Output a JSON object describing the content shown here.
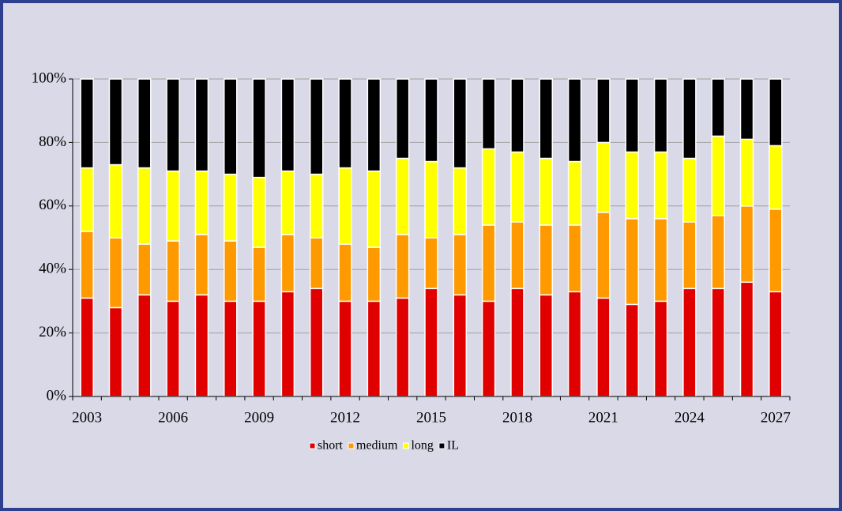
{
  "chart_data": {
    "type": "stacked_bar_100",
    "categories": [
      "2003",
      null,
      null,
      "2006",
      null,
      null,
      "2009",
      null,
      null,
      "2012",
      null,
      null,
      "2015",
      null,
      null,
      "2018",
      null,
      null,
      "2021",
      null,
      null,
      "2024",
      null,
      null,
      "2027"
    ],
    "series": [
      {
        "name": "short",
        "color": "#e00000",
        "values": [
          31,
          28,
          32,
          30,
          32,
          30,
          30,
          33,
          34,
          30,
          30,
          31,
          34,
          32,
          30,
          34,
          32,
          33,
          31,
          29,
          30,
          34,
          34,
          36,
          33
        ]
      },
      {
        "name": "medium",
        "color": "#ff9900",
        "values": [
          21,
          22,
          16,
          19,
          19,
          19,
          17,
          18,
          16,
          18,
          17,
          20,
          16,
          19,
          24,
          21,
          22,
          21,
          27,
          27,
          26,
          21,
          23,
          24,
          26
        ]
      },
      {
        "name": "long",
        "color": "#ffff00",
        "values": [
          20,
          23,
          24,
          22,
          20,
          21,
          22,
          20,
          20,
          24,
          24,
          24,
          24,
          21,
          24,
          22,
          21,
          20,
          22,
          21,
          21,
          20,
          25,
          21,
          20
        ]
      },
      {
        "name": "IL",
        "color": "#000000",
        "values": [
          28,
          27,
          28,
          29,
          29,
          30,
          31,
          29,
          30,
          28,
          29,
          25,
          26,
          28,
          22,
          23,
          25,
          26,
          20,
          23,
          23,
          25,
          18,
          19,
          21
        ]
      }
    ],
    "ylim": [
      0,
      100
    ],
    "yticks": [
      {
        "value": 0,
        "label": "0%"
      },
      {
        "value": 20,
        "label": "20%"
      },
      {
        "value": 40,
        "label": "40%"
      },
      {
        "value": 60,
        "label": "60%"
      },
      {
        "value": 80,
        "label": "80%"
      },
      {
        "value": 100,
        "label": "100%"
      }
    ],
    "grid": true,
    "legend": "bottom"
  }
}
